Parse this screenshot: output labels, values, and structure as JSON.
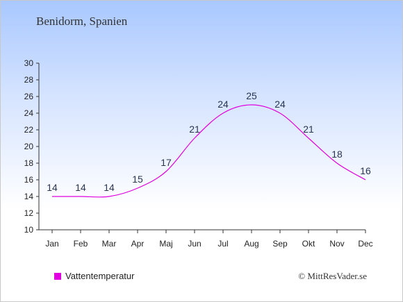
{
  "header": {
    "title": "Benidorm, Spanien"
  },
  "chart_data": {
    "type": "line",
    "title": "Benidorm, Spanien",
    "categories": [
      "Jan",
      "Feb",
      "Mar",
      "Apr",
      "Maj",
      "Jun",
      "Jul",
      "Aug",
      "Sep",
      "Okt",
      "Nov",
      "Dec"
    ],
    "series": [
      {
        "name": "Vattentemperatur",
        "values": [
          14,
          14,
          14,
          15,
          17,
          21,
          24,
          25,
          24,
          21,
          18,
          16
        ],
        "color": "#e000e0"
      }
    ],
    "ylim": [
      10,
      30
    ],
    "yticks": [
      10,
      12,
      14,
      16,
      18,
      20,
      22,
      24,
      26,
      28,
      30
    ],
    "xlabel": "",
    "ylabel": "",
    "grid": false,
    "legend_position": "bottom-left"
  },
  "legend": {
    "label": "Vattentemperatur",
    "color": "#e000e0"
  },
  "footer": {
    "credit": "© MittResVader.se"
  }
}
